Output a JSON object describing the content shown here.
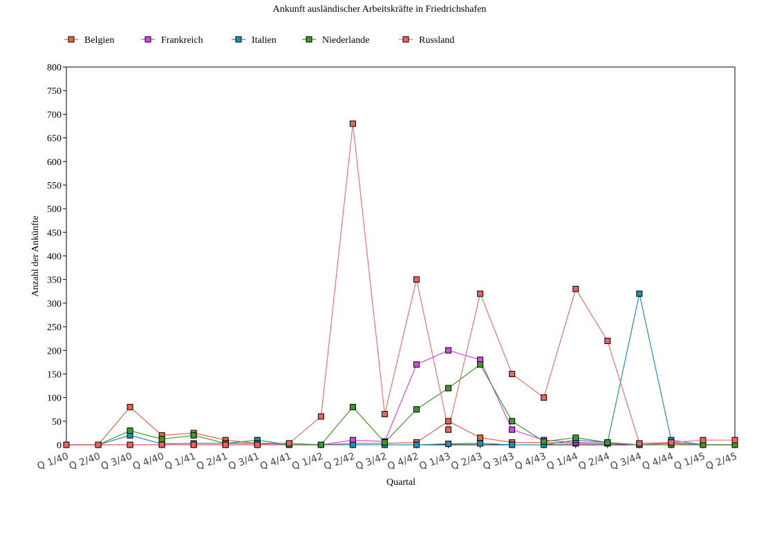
{
  "chart_data": {
    "type": "line",
    "title": "Ankunft ausländischer Arbeitskräfte in Friedrichshafen",
    "xlabel": "Quartal",
    "ylabel": "Anzahl der Ankünfte",
    "ylim": [
      0,
      800
    ],
    "yticks": [
      0,
      50,
      100,
      150,
      200,
      250,
      300,
      350,
      400,
      450,
      500,
      550,
      600,
      650,
      700,
      750,
      800
    ],
    "legend_position": "top",
    "grid": false,
    "categories": [
      "Q 1/40",
      "Q 2/40",
      "Q 3/40",
      "Q 4/40",
      "Q 1/41",
      "Q 2/41",
      "Q 3/41",
      "Q 4/41",
      "Q 1/42",
      "Q 2/42",
      "Q 3/42",
      "Q 4/42",
      "Q 1/43",
      "Q 2/43",
      "Q 3/43",
      "Q 4/43",
      "Q 1/44",
      "Q 2/44",
      "Q 3/44",
      "Q 4/44",
      "Q 1/45",
      "Q 2/45"
    ],
    "series": [
      {
        "name": "Belgien",
        "line_color": "#e8643c",
        "marker_color": "#e8643c",
        "values": [
          0,
          0,
          80,
          20,
          25,
          10,
          3,
          3,
          0,
          3,
          3,
          5,
          50,
          15,
          5,
          5,
          3,
          3,
          0,
          3,
          0,
          0
        ]
      },
      {
        "name": "Frankreich",
        "line_color": "#e040f0",
        "marker_color": "#e040f0",
        "values": [
          0,
          0,
          0,
          0,
          0,
          0,
          0,
          0,
          0,
          10,
          7,
          170,
          200,
          180,
          32,
          10,
          5,
          3,
          0,
          5,
          0,
          0
        ]
      },
      {
        "name": "Italien",
        "line_color": "#1890c0",
        "marker_color": "#1890c0",
        "values": [
          0,
          0,
          20,
          2,
          3,
          3,
          10,
          0,
          0,
          0,
          0,
          0,
          2,
          3,
          0,
          0,
          10,
          5,
          320,
          10,
          0,
          0
        ]
      },
      {
        "name": "Niederlande",
        "line_color": "#3c9a28",
        "marker_color": "#3c9a28",
        "values": [
          0,
          0,
          30,
          12,
          20,
          3,
          3,
          0,
          0,
          80,
          5,
          75,
          120,
          170,
          50,
          7,
          15,
          5,
          0,
          0,
          0,
          0
        ]
      },
      {
        "name": "Russland",
        "line_color": "#f07070",
        "marker_color": "#f06060",
        "values": [
          0,
          0,
          0,
          0,
          0,
          0,
          0,
          3,
          60,
          680,
          65,
          350,
          32,
          320,
          150,
          100,
          330,
          220,
          3,
          5,
          10,
          10
        ]
      }
    ]
  }
}
